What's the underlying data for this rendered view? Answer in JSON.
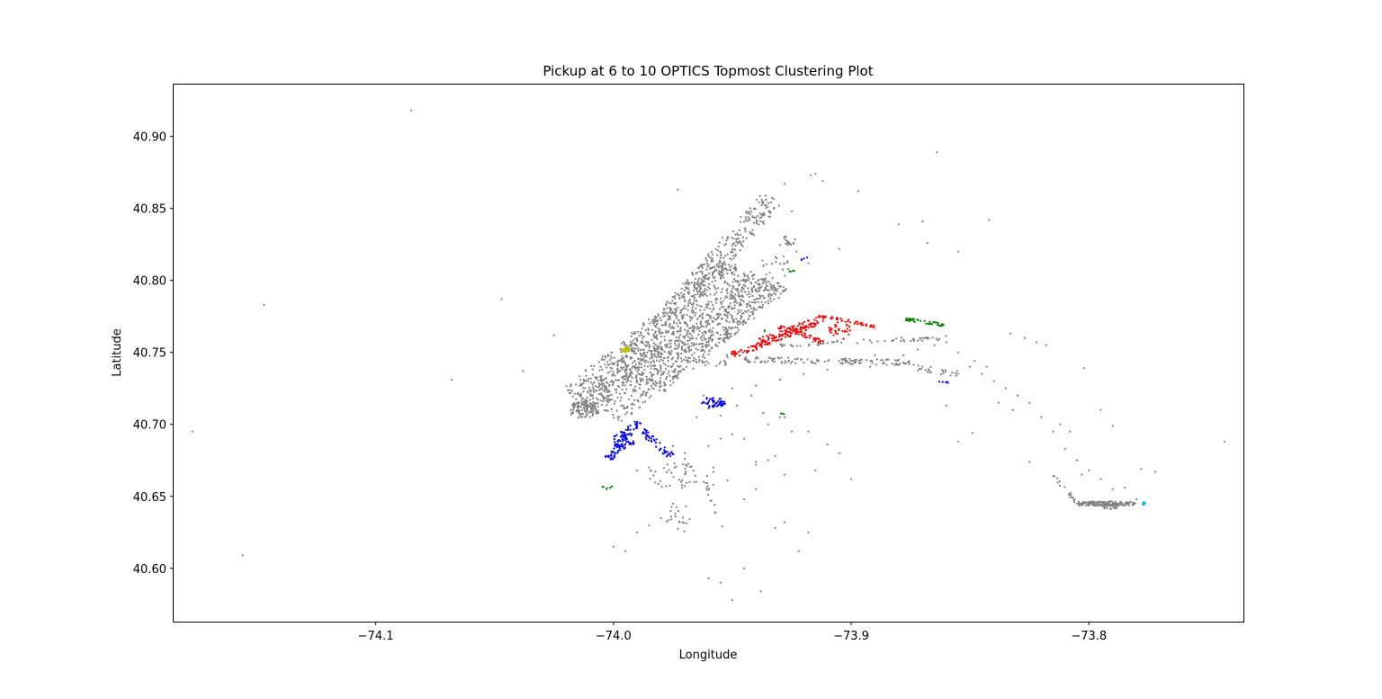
{
  "chart_data": {
    "type": "scatter",
    "title": "Pickup at 6 to 10 OPTICS Topmost Clustering Plot",
    "xlabel": "Longitude",
    "ylabel": "Latitude",
    "xlim": [
      -74.185,
      -73.735
    ],
    "ylim": [
      40.563,
      40.936
    ],
    "xticks": [
      -74.1,
      -74.0,
      -73.9,
      -73.8
    ],
    "xtick_labels": [
      "−74.1",
      "−74.0",
      "−73.9",
      "−73.8"
    ],
    "yticks": [
      40.6,
      40.65,
      40.7,
      40.75,
      40.8,
      40.85,
      40.9
    ],
    "ytick_labels": [
      "40.60",
      "40.65",
      "40.70",
      "40.75",
      "40.80",
      "40.85",
      "40.90"
    ],
    "grid": false,
    "legend": "none",
    "colors": {
      "noise": "#808080",
      "red": "#ff0000",
      "blue": "#0000ff",
      "green": "#008000",
      "yellow": "#bfbf00",
      "cyan": "#00bfbf"
    },
    "series": [
      {
        "color_key": "noise",
        "note_role": "unclustered",
        "x": [
          -74.085,
          -74.147,
          -74.047,
          -74.025,
          -74.038,
          -74.068,
          -74.177,
          -74.156,
          -73.973,
          -73.864,
          -73.842,
          -73.917,
          -73.928,
          -73.925,
          -73.915,
          -73.912,
          -73.897,
          -73.923,
          -73.905,
          -73.918,
          -73.88,
          -73.87,
          -73.868,
          -73.855,
          -73.833,
          -73.827,
          -73.822,
          -73.818,
          -73.848,
          -73.843,
          -73.802,
          -73.795,
          -73.79,
          -73.785,
          -73.78,
          -73.772,
          -73.743,
          -73.778,
          -73.803,
          -73.838,
          -73.832,
          -73.82,
          -73.812,
          -73.808,
          -73.825,
          -73.849,
          -73.855,
          -73.86,
          -73.87,
          -73.88,
          -73.89,
          -73.9,
          -73.91,
          -73.92,
          -73.93,
          -73.94,
          -73.95,
          -73.935,
          -73.928,
          -73.918,
          -73.91,
          -73.905,
          -73.932,
          -73.94,
          -73.955,
          -73.96,
          -73.965,
          -73.97,
          -73.975,
          -73.98,
          -73.985,
          -73.99,
          -73.995,
          -74.0,
          -73.96,
          -73.955,
          -73.95,
          -73.945,
          -73.938,
          -73.932,
          -73.928,
          -73.922,
          -73.918,
          -73.915,
          -73.958,
          -73.962,
          -73.966,
          -73.97,
          -73.975,
          -73.96,
          -73.958,
          -73.962,
          -73.965,
          -73.955,
          -73.948,
          -73.942,
          -73.937,
          -73.93,
          -73.925,
          -73.95,
          -73.945,
          -73.94,
          -73.935,
          -73.928,
          -73.952,
          -73.958,
          -73.97,
          -73.975,
          -73.98,
          -73.985,
          -73.99,
          -73.958,
          -73.945,
          -73.94,
          -73.9,
          -73.892,
          -73.885,
          -73.878,
          -73.872,
          -73.865,
          -73.86,
          -73.855,
          -73.85,
          -73.845,
          -73.84,
          -73.835,
          -73.83,
          -73.825,
          -73.82,
          -73.815,
          -73.81,
          -73.805,
          -73.8,
          -73.795,
          -73.79
        ],
        "y": [
          40.918,
          40.783,
          40.787,
          40.762,
          40.737,
          40.731,
          40.695,
          40.609,
          40.863,
          40.889,
          40.842,
          40.873,
          40.867,
          40.848,
          40.874,
          40.869,
          40.862,
          40.82,
          40.822,
          40.812,
          40.839,
          40.841,
          40.826,
          40.82,
          40.763,
          40.76,
          40.757,
          40.755,
          40.744,
          40.74,
          40.739,
          40.71,
          40.699,
          40.656,
          40.648,
          40.667,
          40.688,
          40.669,
          40.665,
          40.715,
          40.71,
          40.705,
          40.7,
          40.695,
          40.674,
          40.694,
          40.688,
          40.713,
          40.74,
          40.745,
          40.748,
          40.742,
          40.738,
          40.735,
          40.731,
          40.727,
          40.725,
          40.7,
          40.705,
          40.695,
          40.686,
          40.68,
          40.678,
          40.672,
          40.69,
          40.685,
          40.66,
          40.657,
          40.645,
          40.635,
          40.63,
          40.625,
          40.612,
          40.615,
          40.593,
          40.59,
          40.578,
          40.6,
          40.584,
          40.628,
          40.632,
          40.612,
          40.625,
          40.668,
          40.67,
          40.66,
          40.66,
          40.676,
          40.685,
          40.711,
          40.715,
          40.72,
          40.705,
          40.706,
          40.713,
          40.72,
          40.708,
          40.705,
          40.695,
          40.693,
          40.69,
          40.674,
          40.675,
          40.665,
          40.661,
          40.667,
          40.68,
          40.685,
          40.683,
          40.67,
          40.668,
          40.658,
          40.648,
          40.655,
          40.662,
          40.74,
          40.745,
          40.748,
          40.752,
          40.755,
          40.757,
          40.75,
          40.74,
          40.735,
          40.73,
          40.725,
          40.72,
          40.715,
          40.705,
          40.695,
          40.683,
          40.675,
          40.668,
          40.662,
          40.655
        ]
      },
      {
        "color_key": "red",
        "x": [],
        "y": []
      },
      {
        "color_key": "blue",
        "x": [],
        "y": []
      },
      {
        "color_key": "green",
        "x": [],
        "y": []
      },
      {
        "color_key": "yellow",
        "x": [],
        "y": []
      },
      {
        "color_key": "cyan",
        "x": [],
        "y": []
      }
    ],
    "dense_regions": [
      {
        "color_key": "noise",
        "shape": "band",
        "from": [
          -74.012,
          40.708
        ],
        "to": [
          -73.933,
          40.858
        ],
        "width": 0.011,
        "count": 520
      },
      {
        "color_key": "noise",
        "shape": "band",
        "from": [
          -74.01,
          40.712
        ],
        "to": [
          -73.94,
          40.805
        ],
        "width": 0.034,
        "count": 900
      },
      {
        "color_key": "noise",
        "shape": "band",
        "from": [
          -73.99,
          40.725
        ],
        "to": [
          -73.935,
          40.8
        ],
        "width": 0.022,
        "count": 420
      },
      {
        "color_key": "noise",
        "shape": "blob",
        "center": [
          -74.013,
          40.71
        ],
        "radius": [
          0.006,
          0.006
        ],
        "count": 90
      },
      {
        "color_key": "noise",
        "shape": "band",
        "from": [
          -73.945,
          40.745
        ],
        "to": [
          -73.875,
          40.743
        ],
        "width": 0.004,
        "count": 120
      },
      {
        "color_key": "noise",
        "shape": "band",
        "from": [
          -73.93,
          40.755
        ],
        "to": [
          -73.86,
          40.76
        ],
        "width": 0.003,
        "count": 60
      },
      {
        "color_key": "noise",
        "shape": "band",
        "from": [
          -73.875,
          40.74
        ],
        "to": [
          -73.855,
          40.735
        ],
        "width": 0.004,
        "count": 25
      },
      {
        "color_key": "noise",
        "shape": "band",
        "from": [
          -73.805,
          40.645
        ],
        "to": [
          -73.78,
          40.645
        ],
        "width": 0.003,
        "count": 120
      },
      {
        "color_key": "noise",
        "shape": "blob",
        "center": [
          -73.791,
          40.644
        ],
        "radius": [
          0.004,
          0.003
        ],
        "count": 40
      },
      {
        "color_key": "noise",
        "shape": "band",
        "from": [
          -73.815,
          40.665
        ],
        "to": [
          -73.805,
          40.645
        ],
        "width": 0.002,
        "count": 18
      },
      {
        "color_key": "noise",
        "shape": "blob",
        "center": [
          -73.927,
          40.827
        ],
        "radius": [
          0.004,
          0.004
        ],
        "count": 18
      },
      {
        "color_key": "noise",
        "shape": "blob",
        "center": [
          -73.932,
          40.81
        ],
        "radius": [
          0.006,
          0.01
        ],
        "count": 20
      },
      {
        "color_key": "noise",
        "shape": "blob",
        "center": [
          -73.975,
          40.665
        ],
        "radius": [
          0.01,
          0.01
        ],
        "count": 40
      },
      {
        "color_key": "noise",
        "shape": "band",
        "from": [
          -73.962,
          40.667
        ],
        "to": [
          -73.955,
          40.628
        ],
        "width": 0.002,
        "count": 15
      },
      {
        "color_key": "noise",
        "shape": "blob",
        "center": [
          -73.972,
          40.635
        ],
        "radius": [
          0.006,
          0.01
        ],
        "count": 20
      },
      {
        "color_key": "noise",
        "shape": "blob",
        "center": [
          -73.957,
          40.745
        ],
        "radius": [
          0.006,
          0.006
        ],
        "count": 15
      },
      {
        "color_key": "red",
        "shape": "band",
        "from": [
          -73.95,
          40.748
        ],
        "to": [
          -73.915,
          40.77
        ],
        "width": 0.004,
        "count": 120
      },
      {
        "color_key": "red",
        "shape": "band",
        "from": [
          -73.938,
          40.758
        ],
        "to": [
          -73.91,
          40.775
        ],
        "width": 0.004,
        "count": 60
      },
      {
        "color_key": "red",
        "shape": "band",
        "from": [
          -73.93,
          40.768
        ],
        "to": [
          -73.912,
          40.757
        ],
        "width": 0.003,
        "count": 50
      },
      {
        "color_key": "red",
        "shape": "band",
        "from": [
          -73.915,
          40.776
        ],
        "to": [
          -73.89,
          40.768
        ],
        "width": 0.002,
        "count": 45
      },
      {
        "color_key": "red",
        "shape": "blob",
        "center": [
          -73.905,
          40.765
        ],
        "radius": [
          0.005,
          0.006
        ],
        "count": 30
      },
      {
        "color_key": "blue",
        "shape": "band",
        "from": [
          -74.002,
          40.676
        ],
        "to": [
          -73.99,
          40.702
        ],
        "width": 0.004,
        "count": 80
      },
      {
        "color_key": "blue",
        "shape": "band",
        "from": [
          -73.99,
          40.698
        ],
        "to": [
          -73.975,
          40.677
        ],
        "width": 0.004,
        "count": 50
      },
      {
        "color_key": "blue",
        "shape": "blob",
        "center": [
          -73.996,
          40.689
        ],
        "radius": [
          0.005,
          0.006
        ],
        "count": 40
      },
      {
        "color_key": "blue",
        "shape": "blob",
        "center": [
          -73.958,
          40.715
        ],
        "radius": [
          0.005,
          0.004
        ],
        "count": 45
      },
      {
        "color_key": "blue",
        "shape": "band",
        "from": [
          -73.921,
          40.814
        ],
        "to": [
          -73.918,
          40.816
        ],
        "width": 0.001,
        "count": 4
      },
      {
        "color_key": "blue",
        "shape": "band",
        "from": [
          -73.863,
          40.73
        ],
        "to": [
          -73.858,
          40.729
        ],
        "width": 0.001,
        "count": 5
      },
      {
        "color_key": "green",
        "shape": "band",
        "from": [
          -73.877,
          40.773
        ],
        "to": [
          -73.861,
          40.769
        ],
        "width": 0.002,
        "count": 45
      },
      {
        "color_key": "green",
        "shape": "band",
        "from": [
          -73.927,
          40.806
        ],
        "to": [
          -73.924,
          40.807
        ],
        "width": 0.001,
        "count": 4
      },
      {
        "color_key": "green",
        "shape": "band",
        "from": [
          -73.93,
          40.708
        ],
        "to": [
          -73.927,
          40.707
        ],
        "width": 0.001,
        "count": 3
      },
      {
        "color_key": "green",
        "shape": "band",
        "from": [
          -74.005,
          40.656
        ],
        "to": [
          -74.0,
          40.656
        ],
        "width": 0.002,
        "count": 6
      },
      {
        "color_key": "green",
        "shape": "band",
        "from": [
          -73.937,
          40.765
        ],
        "to": [
          -73.936,
          40.765
        ],
        "width": 0.001,
        "count": 2
      },
      {
        "color_key": "yellow",
        "shape": "blob",
        "center": [
          -73.995,
          40.752
        ],
        "radius": [
          0.0015,
          0.002
        ],
        "count": 14
      },
      {
        "color_key": "cyan",
        "shape": "blob",
        "center": [
          -73.777,
          40.645
        ],
        "radius": [
          0.0006,
          0.0007
        ],
        "count": 6
      }
    ]
  }
}
